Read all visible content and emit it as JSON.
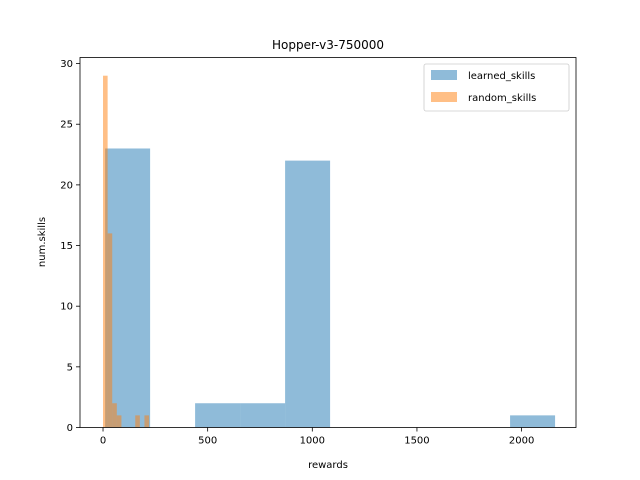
{
  "chart_data": {
    "type": "histogram",
    "title": "Hopper-v3-750000",
    "xlabel": "rewards",
    "ylabel": "num.skills",
    "xlim": [
      -110,
      2260
    ],
    "ylim": [
      0,
      30.5
    ],
    "xticks": [
      0,
      500,
      1000,
      1500,
      2000
    ],
    "yticks": [
      0,
      5,
      10,
      15,
      20,
      25,
      30
    ],
    "grid": false,
    "legend_position": "top-right",
    "series": [
      {
        "name": "learned_skills",
        "color": "#1f77b4",
        "alpha": 0.5,
        "bins": [
          {
            "x0": 10,
            "x1": 225,
            "count": 23
          },
          {
            "x0": 225,
            "x1": 440,
            "count": 0
          },
          {
            "x0": 440,
            "x1": 655,
            "count": 2
          },
          {
            "x0": 655,
            "x1": 870,
            "count": 2
          },
          {
            "x0": 870,
            "x1": 1085,
            "count": 22
          },
          {
            "x0": 1085,
            "x1": 1300,
            "count": 0
          },
          {
            "x0": 1300,
            "x1": 1515,
            "count": 0
          },
          {
            "x0": 1515,
            "x1": 1730,
            "count": 0
          },
          {
            "x0": 1730,
            "x1": 1945,
            "count": 0
          },
          {
            "x0": 1945,
            "x1": 2160,
            "count": 1
          }
        ]
      },
      {
        "name": "random_skills",
        "color": "#ff7f0e",
        "alpha": 0.5,
        "bins": [
          {
            "x0": 0,
            "x1": 22,
            "count": 29
          },
          {
            "x0": 22,
            "x1": 44,
            "count": 16
          },
          {
            "x0": 44,
            "x1": 66,
            "count": 2
          },
          {
            "x0": 66,
            "x1": 88,
            "count": 1
          },
          {
            "x0": 88,
            "x1": 110,
            "count": 0
          },
          {
            "x0": 110,
            "x1": 132,
            "count": 0
          },
          {
            "x0": 132,
            "x1": 154,
            "count": 0
          },
          {
            "x0": 154,
            "x1": 176,
            "count": 1
          },
          {
            "x0": 176,
            "x1": 198,
            "count": 0
          },
          {
            "x0": 198,
            "x1": 220,
            "count": 1
          }
        ]
      }
    ]
  }
}
